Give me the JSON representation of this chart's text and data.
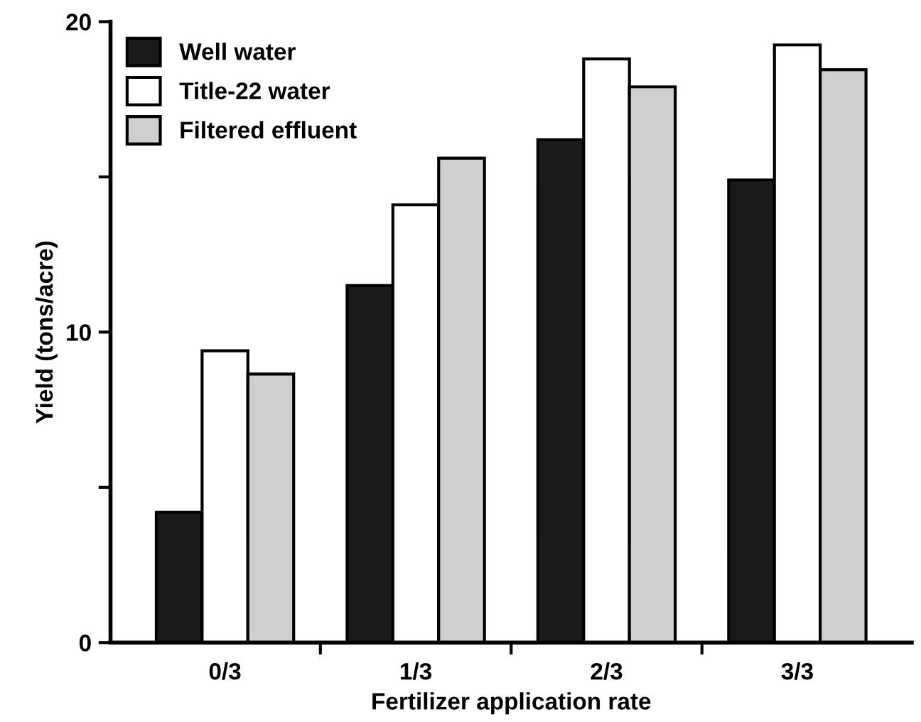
{
  "chart_data": {
    "type": "bar",
    "xlabel": "Fertilizer application rate",
    "ylabel": "Yield (tons/acre)",
    "categories": [
      "0/3",
      "1/3",
      "2/3",
      "3/3"
    ],
    "series": [
      {
        "name": "Well water",
        "color": "#1a1a1a",
        "values": [
          4.2,
          11.5,
          16.2,
          14.9
        ]
      },
      {
        "name": "Title-22 water",
        "color": "#ffffff",
        "values": [
          9.4,
          14.1,
          18.8,
          19.25
        ]
      },
      {
        "name": "Filtered effluent",
        "color": "#cfcfcf",
        "values": [
          8.65,
          15.6,
          17.9,
          18.45
        ]
      }
    ],
    "ylim": [
      0,
      20
    ],
    "yticks": [
      0,
      {
        "value": 5,
        "label": null
      },
      10,
      {
        "value": 15,
        "label": null
      },
      20
    ],
    "grid": false,
    "legend": "top left"
  }
}
